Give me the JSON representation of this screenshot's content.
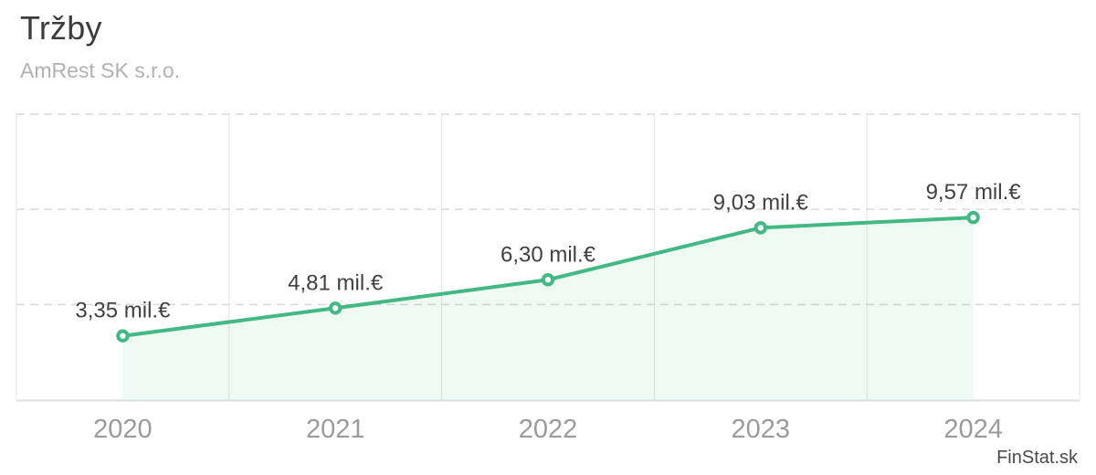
{
  "header": {
    "title": "Tržby",
    "subtitle": "AmRest SK s.r.o."
  },
  "watermark": "FinStat.sk",
  "colors": {
    "line": "#42b883",
    "area_fill": "rgba(66,184,131,0.09)",
    "marker_fill": "#ffffff",
    "grid_dashed": "#d9d9d9",
    "grid_vertical": "#e5e5e5",
    "axis_line": "#dedede",
    "title_text": "#3c3c3c",
    "subtitle_text": "#b1b1b1",
    "year_text": "#9b9b9b",
    "label_text": "#414141"
  },
  "chart_data": {
    "type": "area",
    "title": "Tržby",
    "subtitle": "AmRest SK s.r.o.",
    "categories": [
      "2020",
      "2021",
      "2022",
      "2023",
      "2024"
    ],
    "values": [
      3.35,
      4.81,
      6.3,
      9.03,
      9.57
    ],
    "point_labels": [
      "3,35 mil.€",
      "4,81 mil.€",
      "6,30 mil.€",
      "9,03 mil.€",
      "9,57 mil.€"
    ],
    "unit": "mil.€",
    "xlabel": "",
    "ylabel": "",
    "ylim": [
      0,
      15
    ],
    "gridline_values": [
      5,
      10,
      15
    ],
    "grid": "horizontal-dashed-and-vertical-solid",
    "legend": "none",
    "y_axis_labels_visible": false
  }
}
